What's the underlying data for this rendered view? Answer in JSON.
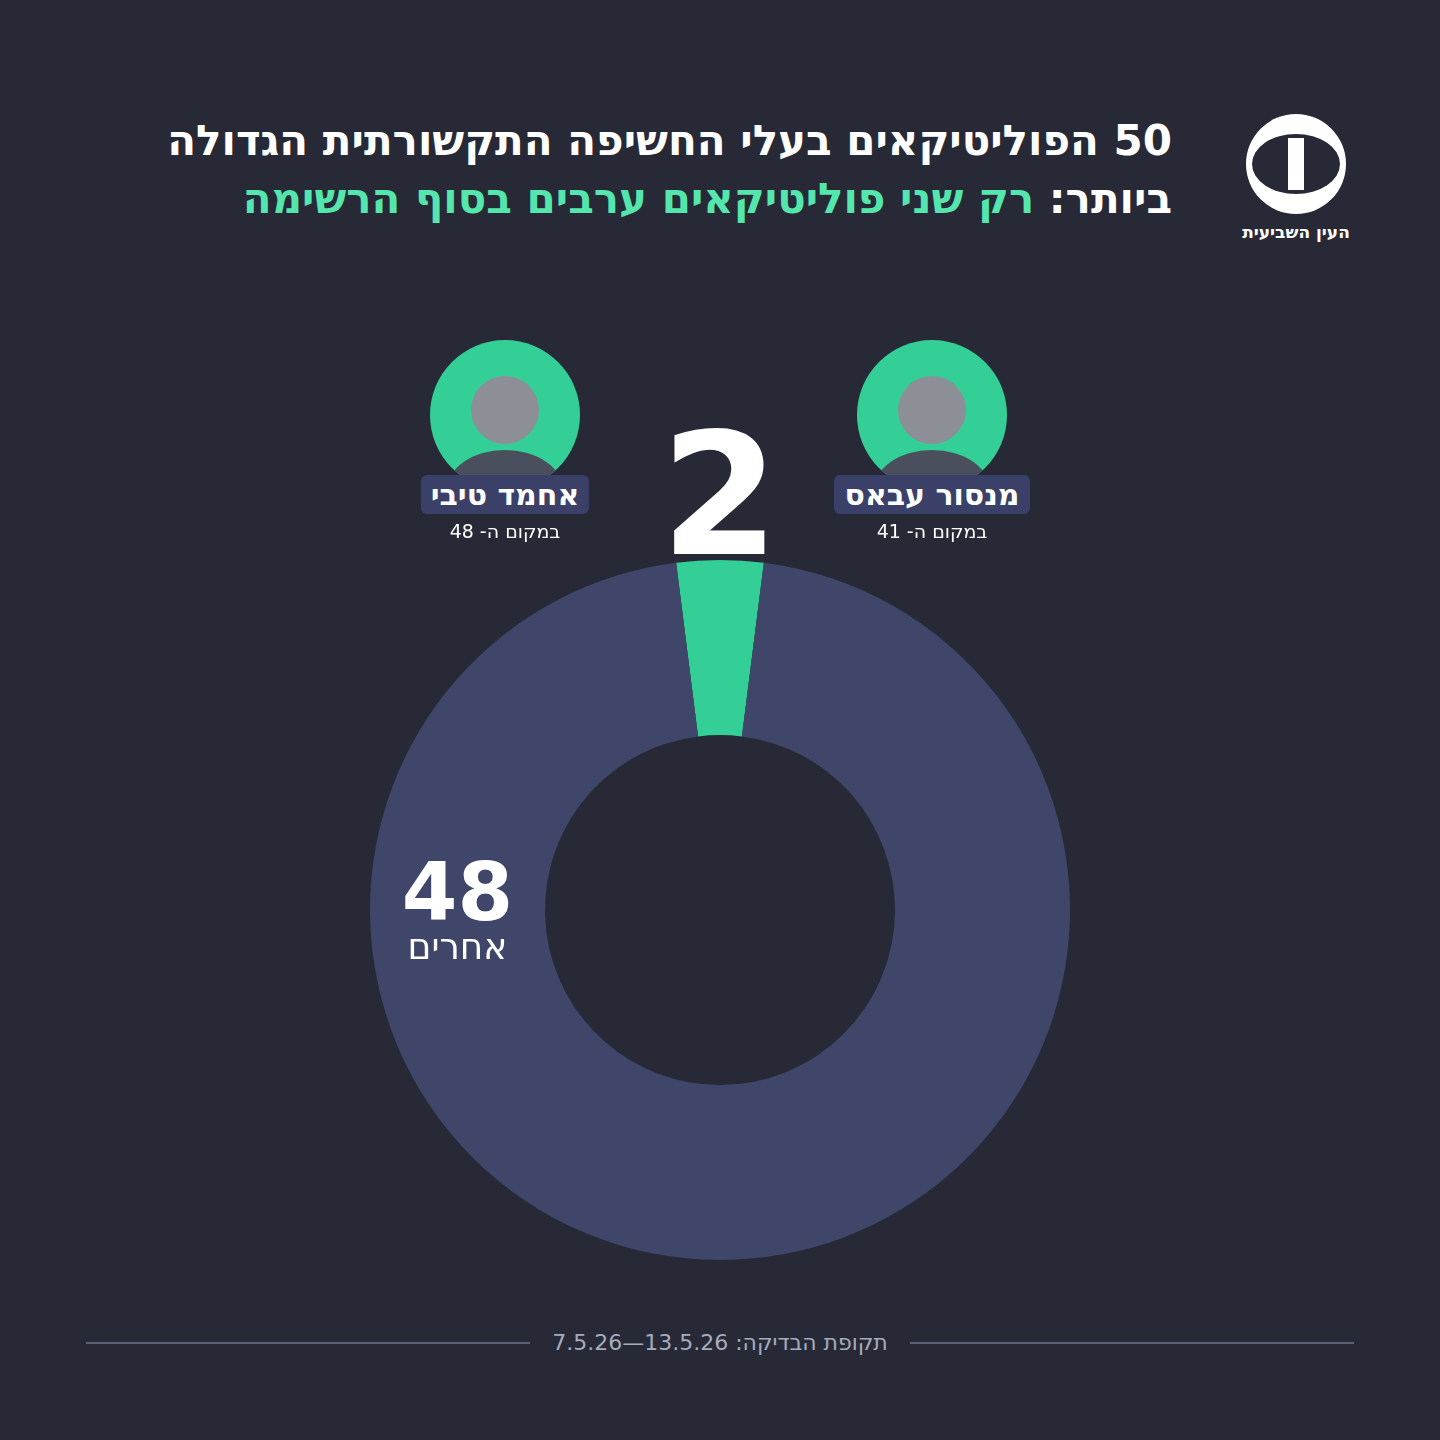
{
  "logo_text": "העין השביעית",
  "chart_data": {
    "type": "doughnut",
    "title": "50 הפוליטיקאים בעלי החשיפה התקשורתית הגדולה ביותר:",
    "subtitle": "רק שני פוליטיקאים ערבים בסוף הרשימה",
    "categories": [
      null,
      "אחרים"
    ],
    "values": [
      2,
      48
    ],
    "colors": [
      "#33cf96",
      "#3f4669"
    ],
    "data_labels": true,
    "legend": false,
    "people": [
      {
        "name": "מנסור עבאס",
        "rank_label": "במקום ה- 41"
      },
      {
        "name": "אחמד טיבי",
        "rank_label": "במקום ה- 48"
      }
    ],
    "period_label": "תקופת הבדיקה:",
    "period": "7.5.26—13.5.26"
  }
}
